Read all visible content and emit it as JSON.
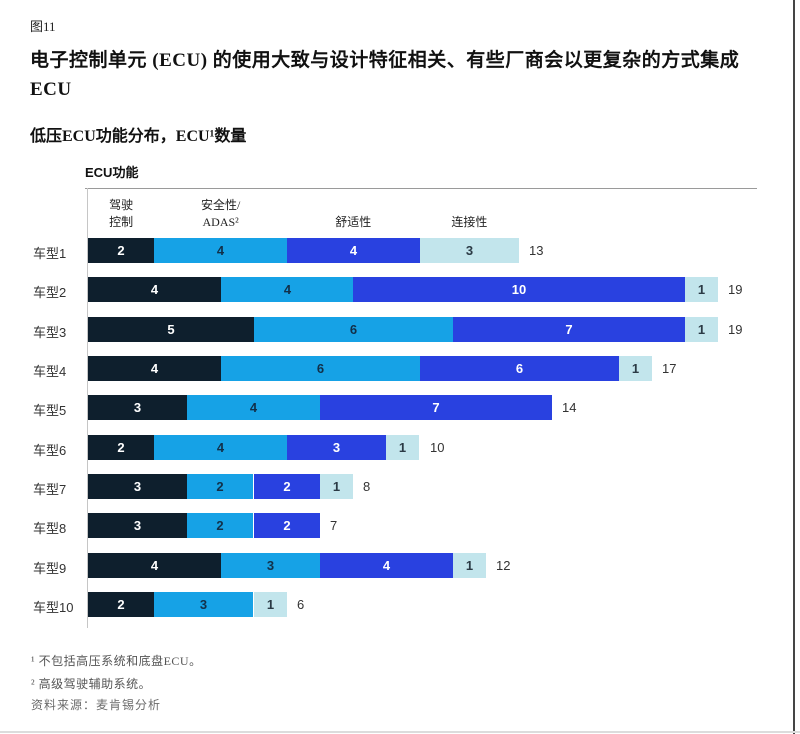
{
  "page": {
    "figure_label": "图11",
    "title_lines": [
      "电子控制单元 (ECU) 的使用大致与设计特征相关、有些厂商会以更复杂的方式集成",
      "ECU"
    ],
    "subtitle": "低压ECU功能分布，ECU¹数量"
  },
  "chart_data": {
    "type": "bar",
    "orientation": "horizontal",
    "stacked": true,
    "axis_title": "ECU功能",
    "x_max": 19,
    "grid": false,
    "legend_position": "top",
    "legend": [
      {
        "name": "驾驶控制",
        "label_lines": [
          "驾驶",
          "控制"
        ],
        "color": "#0e1f2d",
        "text_color": "#ffffff"
      },
      {
        "name": "安全性/ADAS²",
        "label_lines": [
          "安全性/",
          "ADAS²"
        ],
        "color": "#16a2e6",
        "text_color": "#123049"
      },
      {
        "name": "舒适性",
        "label_lines": [
          "舒适性"
        ],
        "color": "#2941e0",
        "text_color": "#ffffff"
      },
      {
        "name": "连接性",
        "label_lines": [
          "连接性"
        ],
        "color": "#c2e5ec",
        "text_color": "#2b3a45"
      }
    ],
    "categories": [
      "车型1",
      "车型2",
      "车型3",
      "车型4",
      "车型5",
      "车型6",
      "车型7",
      "车型8",
      "车型9",
      "车型10"
    ],
    "series": [
      {
        "name": "驾驶控制",
        "values": [
          2,
          4,
          5,
          4,
          3,
          2,
          3,
          3,
          4,
          2
        ]
      },
      {
        "name": "安全性/ADAS²",
        "values": [
          4,
          4,
          6,
          6,
          4,
          4,
          2,
          2,
          3,
          3
        ]
      },
      {
        "name": "舒适性",
        "values": [
          4,
          10,
          7,
          6,
          7,
          3,
          2,
          2,
          4,
          0
        ]
      },
      {
        "name": "连接性",
        "values": [
          3,
          1,
          1,
          1,
          0,
          1,
          1,
          0,
          1,
          1
        ]
      }
    ],
    "totals": [
      13,
      19,
      19,
      17,
      14,
      10,
      8,
      7,
      12,
      6
    ]
  },
  "footnotes": [
    "¹ 不包括高压系统和底盘ECU。",
    "² 高级驾驶辅助系统。"
  ],
  "source": "资料来源：麦肯锡分析"
}
